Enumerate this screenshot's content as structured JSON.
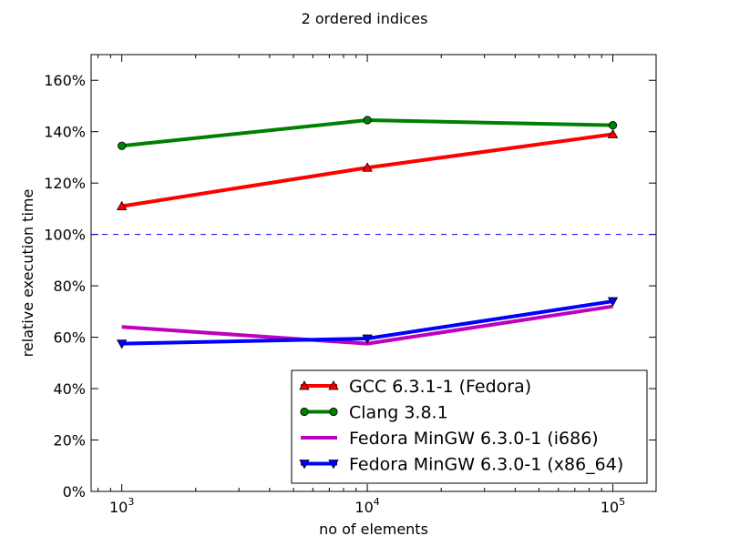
{
  "chart_data": {
    "type": "line",
    "title": "2 ordered indices",
    "xlabel": "no of elements",
    "ylabel": "relative execution time",
    "x_scale": "log",
    "x": [
      1000,
      10000,
      100000
    ],
    "x_tick_labels": [
      {
        "base": "10",
        "exp": "3"
      },
      {
        "base": "10",
        "exp": "4"
      },
      {
        "base": "10",
        "exp": "5"
      }
    ],
    "xlim": [
      750,
      150000
    ],
    "ylim": [
      0,
      170
    ],
    "y_ticks": [
      0,
      20,
      40,
      60,
      80,
      100,
      120,
      140,
      160
    ],
    "y_tick_labels": [
      "0%",
      "20%",
      "40%",
      "60%",
      "80%",
      "100%",
      "120%",
      "140%",
      "160%"
    ],
    "reference_line": {
      "y": 100,
      "color": "#0000ff",
      "style": "dashed"
    },
    "grid": false,
    "legend_position": "lower-right",
    "series": [
      {
        "name": "GCC 6.3.1-1 (Fedora)",
        "values": [
          111,
          126,
          139
        ],
        "color": "#ff0000",
        "marker": "triangle-up"
      },
      {
        "name": "Clang 3.8.1",
        "values": [
          134.5,
          144.5,
          142.5
        ],
        "color": "#008000",
        "marker": "circle"
      },
      {
        "name": "Fedora MinGW 6.3.0-1 (i686)",
        "values": [
          64,
          57.5,
          72
        ],
        "color": "#bf00bf",
        "marker": "none"
      },
      {
        "name": "Fedora MinGW 6.3.0-1 (x86_64)",
        "values": [
          57.5,
          59.5,
          74
        ],
        "color": "#0000ff",
        "marker": "triangle-down"
      }
    ]
  }
}
